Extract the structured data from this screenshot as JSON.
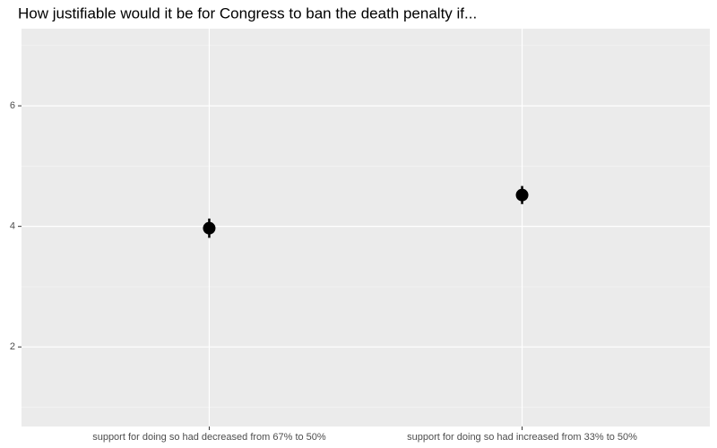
{
  "chart_data": {
    "type": "pointrange",
    "title": "How justifiable would it be for Congress to ban the death penalty if...",
    "categories": [
      "support for doing so had decreased from 67% to 50%",
      "support for doing so had increased from 33% to 50%"
    ],
    "values": [
      3.97,
      4.52
    ],
    "errors": [
      0.16,
      0.15
    ],
    "color": "#000000",
    "ylim": [
      0.68,
      7.28
    ],
    "yticks": [
      2,
      4,
      6
    ],
    "minor_grid": [
      1,
      3,
      5,
      7
    ],
    "grid": true
  }
}
